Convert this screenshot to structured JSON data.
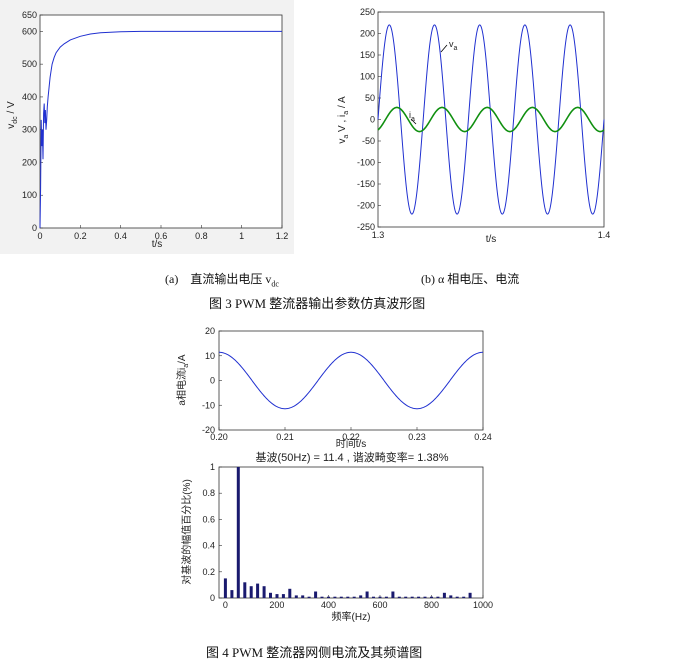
{
  "figure3": {
    "caption_a_tag": "(a)",
    "caption_a_text": "直流输出电压 v",
    "caption_a_sub": "dc",
    "caption_b": "(b) α 相电压、电流",
    "caption": "图 3 PWM 整流器输出参数仿真波形图"
  },
  "figure4": {
    "caption": "图 4 PWM 整流器网侧电流及其频谱图"
  },
  "chart_data": [
    {
      "type": "line",
      "ylabel": "v_dc / V",
      "xlabel": "t/s",
      "xlim": [
        0,
        1.2
      ],
      "ylim": [
        0,
        650
      ],
      "xticks": [
        "0",
        "0.2",
        "0.4",
        "0.6",
        "0.8",
        "1",
        "1.2"
      ],
      "yticks": [
        "0",
        "100",
        "200",
        "300",
        "400",
        "500",
        "600",
        "650"
      ],
      "series": [
        {
          "color": "#2030d0",
          "x": [
            0,
            0.003,
            0.006,
            0.009,
            0.012,
            0.015,
            0.018,
            0.021,
            0.024,
            0.027,
            0.03,
            0.033,
            0.036,
            0.04,
            0.045,
            0.05,
            0.055,
            0.06,
            0.07,
            0.08,
            0.1,
            0.12,
            0.15,
            0.2,
            0.25,
            0.3,
            0.4,
            0.5,
            0.6,
            0.8,
            1.0,
            1.2
          ],
          "y": [
            0,
            120,
            330,
            250,
            300,
            210,
            350,
            380,
            320,
            360,
            300,
            330,
            370,
            400,
            430,
            460,
            480,
            500,
            520,
            535,
            552,
            562,
            574,
            585,
            592,
            596,
            599,
            600,
            600,
            600,
            600,
            600
          ]
        }
      ]
    },
    {
      "type": "line",
      "ylabel": "v_a V, i_a / A",
      "xlabel": "t/s",
      "xlim": [
        1.3,
        1.4
      ],
      "ylim": [
        -250,
        250
      ],
      "xticks": [
        "1.3",
        "1.4"
      ],
      "yticks": [
        "250",
        "200",
        "150",
        "100",
        "50",
        "0",
        "-50",
        "-100",
        "-150",
        "-200",
        "-250"
      ],
      "annotations": [
        "v_a",
        "i_a"
      ],
      "series": [
        {
          "name": "v_a",
          "color": "#2030d0",
          "amplitude": 220,
          "frequency_hz": 50,
          "phase_deg": 0,
          "x_range": [
            1.3,
            1.4
          ]
        },
        {
          "name": "i_a",
          "color": "#109010",
          "amplitude": 28,
          "frequency_hz": 50,
          "phase_deg": -60,
          "x_range": [
            1.3,
            1.4
          ]
        }
      ]
    },
    {
      "type": "line",
      "ylabel": "a相电流i_a/A",
      "xlabel": "时间t/s",
      "xlim": [
        0.2,
        0.24
      ],
      "ylim": [
        -20,
        20
      ],
      "xticks": [
        "0.20",
        "0.21",
        "0.22",
        "0.23",
        "0.24"
      ],
      "yticks": [
        "20",
        "10",
        "0",
        "-10",
        "-20"
      ],
      "series": [
        {
          "color": "#2030d0",
          "amplitude": 11.4,
          "frequency_hz": 50,
          "phase_deg": 90,
          "x_range": [
            0.2,
            0.24
          ]
        }
      ]
    },
    {
      "type": "bar",
      "title": "基波(50Hz) = 11.4 , 谐波畸变率= 1.38%",
      "ylabel": "对基波的幅值百分比(%)",
      "xlabel": "频率(Hz)",
      "xlim": [
        -25,
        1000
      ],
      "ylim": [
        0,
        1
      ],
      "xticks": [
        "0",
        "200",
        "400",
        "600",
        "800",
        "1000"
      ],
      "yticks": [
        "1",
        "0.8",
        "0.6",
        "0.4",
        "0.2",
        "0"
      ],
      "color": "#1a1a6e",
      "freqs": [
        0,
        25,
        50,
        75,
        100,
        125,
        150,
        175,
        200,
        225,
        250,
        275,
        300,
        325,
        350,
        375,
        400,
        425,
        450,
        475,
        500,
        525,
        550,
        575,
        600,
        625,
        650,
        675,
        700,
        725,
        750,
        775,
        800,
        825,
        850,
        875,
        900,
        925,
        950
      ],
      "values": [
        0.15,
        0.06,
        1.0,
        0.12,
        0.09,
        0.11,
        0.09,
        0.04,
        0.03,
        0.03,
        0.07,
        0.02,
        0.02,
        0.01,
        0.05,
        0.01,
        0.01,
        0.01,
        0.01,
        0.01,
        0.01,
        0.02,
        0.05,
        0.01,
        0.01,
        0.01,
        0.05,
        0.01,
        0.01,
        0.01,
        0.01,
        0.01,
        0.01,
        0.01,
        0.04,
        0.02,
        0.01,
        0.01,
        0.04
      ]
    }
  ]
}
